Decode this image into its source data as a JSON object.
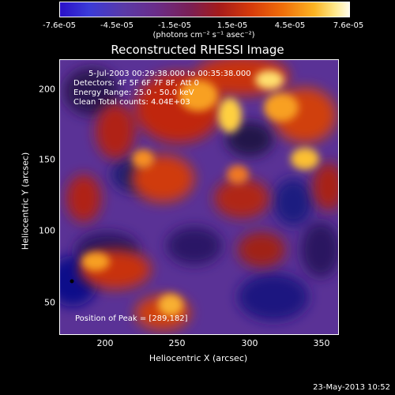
{
  "colorbar": {
    "tick_labels": [
      "-7.6e-05",
      "-4.5e-05",
      "-1.5e-05",
      "1.5e-05",
      "4.5e-05",
      "7.6e-05"
    ],
    "units": "(photons cm⁻² s⁻¹ asec⁻²)"
  },
  "title": "Reconstructed RHESSI Image",
  "annotations": {
    "time": "5-Jul-2003 00:29:38.000 to 00:35:38.000",
    "detectors": "Detectors: 4F 5F 6F 7F 8F, Att 0",
    "energy": "Energy Range: 25.0 - 50.0 keV",
    "clean": "Clean    Total counts: 4.04E+03",
    "peak": "Position of Peak = [289,182]"
  },
  "axes": {
    "xlabel": "Heliocentric X (arcsec)",
    "ylabel": "Heliocentric Y (arcsec)",
    "x_ticks": [
      "200",
      "250",
      "300",
      "350"
    ],
    "y_ticks": [
      "200",
      "150",
      "100",
      "50"
    ]
  },
  "footer_date": "23-May-2013 10:52"
}
